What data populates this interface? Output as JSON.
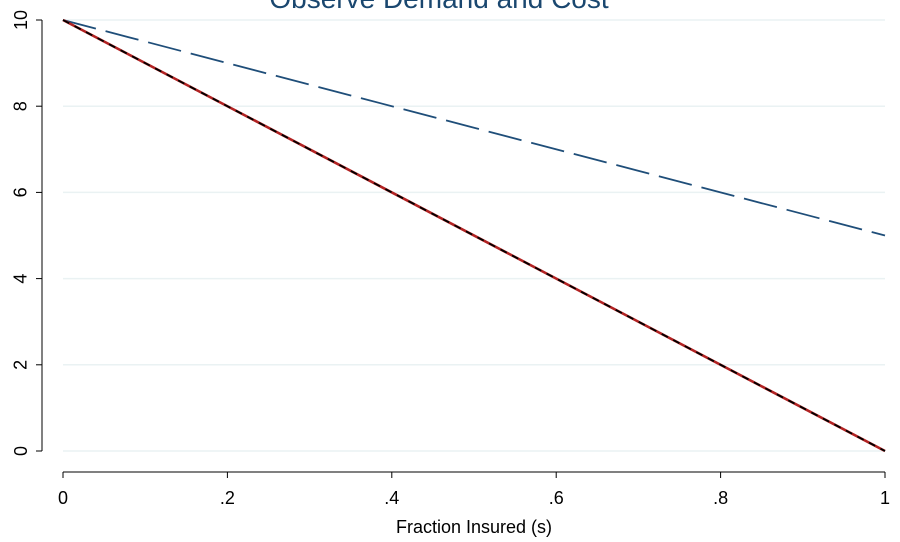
{
  "chart_data": {
    "type": "line",
    "title": "Observe Demand and Cost",
    "xlabel": "Fraction Insured (s)",
    "ylabel": "",
    "xlim": [
      0,
      1
    ],
    "ylim": [
      0,
      10
    ],
    "x_ticks": [
      {
        "value": 0,
        "label": "0"
      },
      {
        "value": 0.2,
        "label": ".2"
      },
      {
        "value": 0.4,
        "label": ".4"
      },
      {
        "value": 0.6,
        "label": ".6"
      },
      {
        "value": 0.8,
        "label": ".8"
      },
      {
        "value": 1,
        "label": "1"
      }
    ],
    "y_ticks": [
      {
        "value": 0,
        "label": "0"
      },
      {
        "value": 2,
        "label": "2"
      },
      {
        "value": 4,
        "label": "4"
      },
      {
        "value": 6,
        "label": "6"
      },
      {
        "value": 8,
        "label": "8"
      },
      {
        "value": 10,
        "label": "10"
      }
    ],
    "grid": "horizontal",
    "series": [
      {
        "x": [
          0,
          1
        ],
        "y": [
          10,
          5
        ],
        "color": "#1f4e79",
        "dash": "long-dash"
      },
      {
        "x": [
          0,
          1
        ],
        "y": [
          10,
          0
        ],
        "color": "#b22222",
        "dash": "solid"
      },
      {
        "x": [
          0,
          1
        ],
        "y": [
          10,
          0
        ],
        "color": "#000000",
        "dash": "short-dash"
      }
    ],
    "colors": {
      "title": "#1a476f",
      "grid": "#eaf2f3",
      "axis": "#000000"
    }
  }
}
